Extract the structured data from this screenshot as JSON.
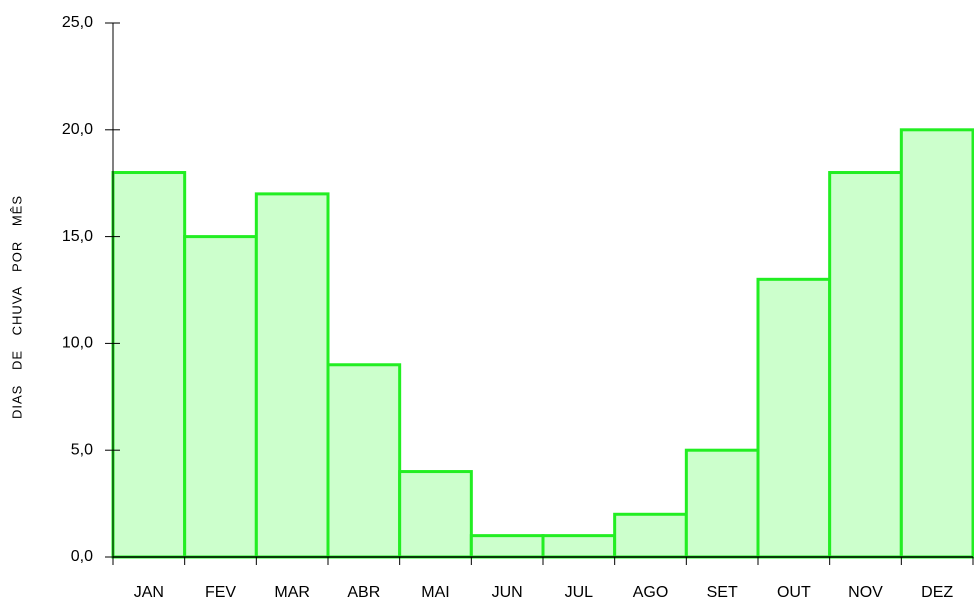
{
  "chart_data": {
    "type": "bar",
    "y_label": "DIAS DE CHUVA POR MÊS",
    "categories": [
      "JAN",
      "FEV",
      "MAR",
      "ABR",
      "MAI",
      "JUN",
      "JUL",
      "AGO",
      "SET",
      "OUT",
      "NOV",
      "DEZ"
    ],
    "values": [
      18,
      15,
      17,
      9,
      4,
      1,
      1,
      2,
      5,
      13,
      18,
      20
    ],
    "color": "#ccffcc",
    "edge_color": "#22ee22",
    "ylim": [
      0,
      25
    ],
    "yticks": [
      {
        "value": 0,
        "label": "0,0"
      },
      {
        "value": 5,
        "label": "5,0"
      },
      {
        "value": 10,
        "label": "10,0"
      },
      {
        "value": 15,
        "label": "15,0"
      },
      {
        "value": 20,
        "label": "20,0"
      },
      {
        "value": 25,
        "label": "25,0"
      }
    ],
    "grid": false
  }
}
